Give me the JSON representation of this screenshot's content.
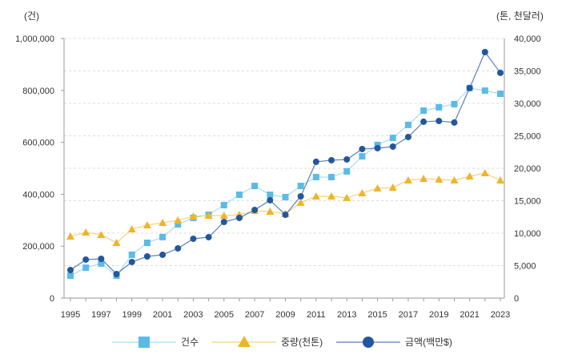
{
  "chart_data": {
    "type": "line",
    "left_unit": "(건)",
    "right_unit": "(톤, 천달러)",
    "ylim_left": [
      0,
      1000000
    ],
    "ylim_right": [
      0,
      40000
    ],
    "left_ticks": [
      "0",
      "200,000",
      "400,000",
      "600,000",
      "800,000",
      "1,000,000"
    ],
    "right_ticks": [
      "0",
      "5,000",
      "10,000",
      "15,000",
      "20,000",
      "25,000",
      "30,000",
      "35,000",
      "40,000"
    ],
    "x_tick_labels": [
      "1995",
      "1997",
      "1999",
      "2001",
      "2003",
      "2005",
      "2007",
      "2009",
      "2011",
      "2013",
      "2015",
      "2017",
      "2019",
      "2021",
      "2023"
    ],
    "x": [
      1995,
      1996,
      1997,
      1998,
      1999,
      2000,
      2001,
      2002,
      2003,
      2004,
      2005,
      2006,
      2007,
      2008,
      2009,
      2010,
      2011,
      2012,
      2013,
      2014,
      2015,
      2016,
      2017,
      2018,
      2019,
      2020,
      2021,
      2022,
      2023
    ],
    "grid": true,
    "legend_position": "bottom",
    "series": [
      {
        "name": "건수",
        "axis": "left",
        "marker": "square",
        "color": "#5bbbe6",
        "line_color": "#a9dcf2",
        "values": [
          86000,
          117000,
          133000,
          86000,
          167000,
          213000,
          235000,
          284000,
          309000,
          321000,
          358000,
          398000,
          432000,
          398000,
          389000,
          432000,
          466000,
          466000,
          488000,
          546000,
          590000,
          617000,
          667000,
          722000,
          735000,
          747000,
          809000,
          799000,
          787000
        ]
      },
      {
        "name": "중량(천톤)",
        "axis": "right",
        "marker": "triangle",
        "color": "#f0b429",
        "line_color": "#f5d27a",
        "values": [
          9500,
          10130,
          9760,
          8520,
          10620,
          11240,
          11610,
          11980,
          12600,
          12720,
          12720,
          12840,
          13460,
          13340,
          12970,
          14700,
          15680,
          15680,
          15440,
          16180,
          16920,
          17040,
          18150,
          18400,
          18280,
          18150,
          18770,
          19260,
          18150
        ]
      },
      {
        "name": "금액(백만$)",
        "axis": "right",
        "marker": "circle",
        "color": "#22579e",
        "line_color": "#5c7fb8",
        "values": [
          4320,
          5930,
          6050,
          3700,
          5560,
          6420,
          6670,
          7660,
          9140,
          9390,
          11730,
          12350,
          13580,
          15070,
          12840,
          15680,
          21000,
          21240,
          21360,
          22970,
          23090,
          23340,
          24820,
          27170,
          27290,
          27050,
          32360,
          37900,
          34700
        ]
      }
    ]
  }
}
